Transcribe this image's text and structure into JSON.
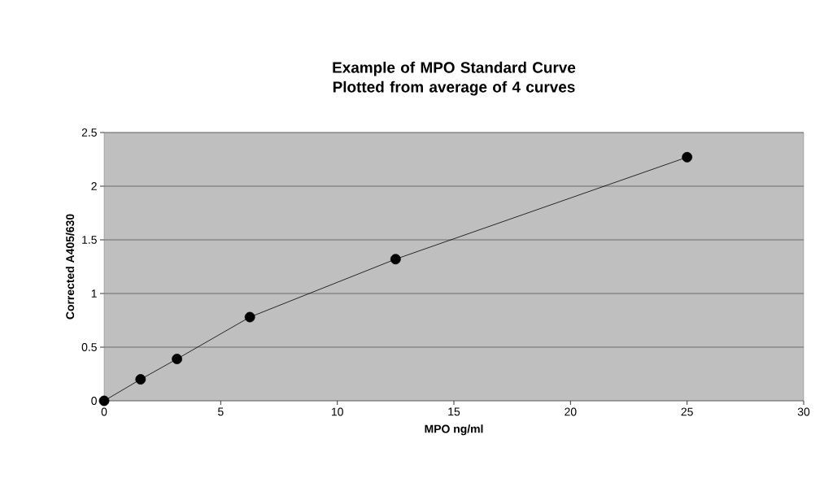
{
  "chart_data": {
    "type": "line",
    "title": "Example of MPO Standard Curve Plotted from average of 4 curves",
    "xlabel": "MPO ng/ml",
    "ylabel": "Corrected A405/630",
    "x": [
      0,
      1.5625,
      3.125,
      6.25,
      12.5,
      25
    ],
    "series": [
      {
        "color": "#000000",
        "values": [
          0,
          0.2,
          0.39,
          0.78,
          1.32,
          2.27
        ]
      }
    ],
    "xlim": [
      0,
      30
    ],
    "xticks": [
      0,
      5,
      10,
      15,
      20,
      25,
      30
    ],
    "ylim": [
      0,
      2.5
    ],
    "yticks": [
      0,
      0.5,
      1,
      1.5,
      2,
      2.5
    ],
    "grid": "y",
    "marker": "circle",
    "line_style": "solid"
  }
}
